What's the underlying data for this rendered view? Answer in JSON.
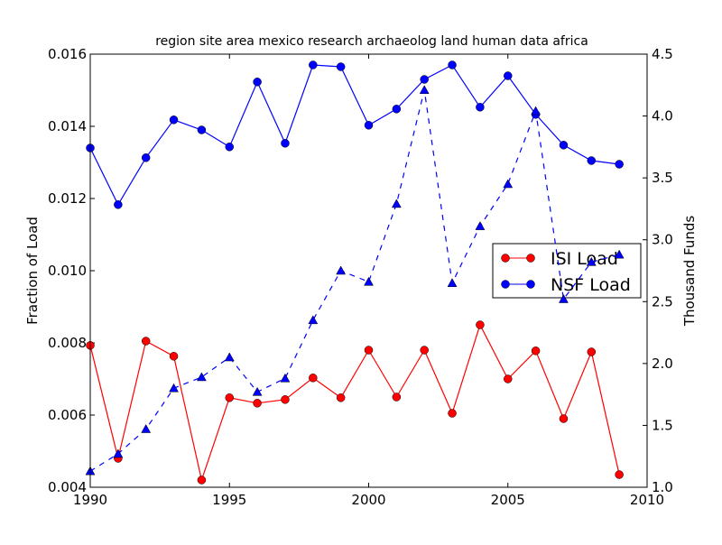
{
  "chart_data": {
    "type": "line",
    "title": "region site area mexico research archaeolog land human data africa",
    "xlabel": "",
    "ylabel": "Fraction of Load",
    "ylabel_right": "Thousand Funds",
    "xlim": [
      1990,
      2010
    ],
    "ylim": [
      0.004,
      0.016
    ],
    "ylim_right": [
      1.0,
      4.5
    ],
    "x_ticks": [
      "1990",
      "1995",
      "2000",
      "2005",
      "2010"
    ],
    "y_ticks": [
      "0.004",
      "0.006",
      "0.008",
      "0.010",
      "0.012",
      "0.014",
      "0.016"
    ],
    "y_ticks_right": [
      "1.0",
      "1.5",
      "2.0",
      "2.5",
      "3.0",
      "3.5",
      "4.0",
      "4.5"
    ],
    "legend_position": "center-right",
    "x": [
      1990,
      1991,
      1992,
      1993,
      1994,
      1995,
      1996,
      1997,
      1998,
      1999,
      2000,
      2001,
      2002,
      2003,
      2004,
      2005,
      2006,
      2007,
      2008,
      2009
    ],
    "series": [
      {
        "name": "ISI Load",
        "axis": "left",
        "color": "#ff0000",
        "marker": "circle",
        "linestyle": "solid",
        "values": [
          0.00793,
          0.0048,
          0.00805,
          0.00763,
          0.0042,
          0.00648,
          0.00633,
          0.00643,
          0.00703,
          0.00648,
          0.0078,
          0.0065,
          0.0078,
          0.00605,
          0.0085,
          0.007,
          0.00778,
          0.0059,
          0.00775,
          0.00435
        ]
      },
      {
        "name": "NSF Load",
        "axis": "left",
        "color": "#0000ff",
        "marker": "circle",
        "linestyle": "solid",
        "values": [
          0.0134,
          0.01183,
          0.01313,
          0.01418,
          0.0139,
          0.01343,
          0.01523,
          0.01353,
          0.0157,
          0.01565,
          0.01403,
          0.01448,
          0.0153,
          0.0157,
          0.01453,
          0.0154,
          0.01433,
          0.01348,
          0.01305,
          0.01295
        ]
      },
      {
        "name": "Funds",
        "axis": "right",
        "color": "#0000ff",
        "marker": "triangle",
        "linestyle": "dashed",
        "in_legend": false,
        "values": [
          1.13,
          1.27,
          1.47,
          1.8,
          1.89,
          2.05,
          1.77,
          1.88,
          2.35,
          2.75,
          2.66,
          3.29,
          4.21,
          2.65,
          3.11,
          3.45,
          4.04,
          2.52,
          2.82,
          2.88
        ]
      }
    ]
  }
}
